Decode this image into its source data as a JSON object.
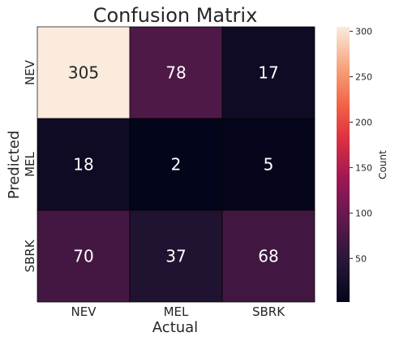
{
  "chart_data": {
    "type": "heatmap",
    "title": "Confusion Matrix",
    "xlabel": "Actual",
    "ylabel": "Predicted",
    "x_categories": [
      "NEV",
      "MEL",
      "SBRK"
    ],
    "y_categories": [
      "NEV",
      "MEL",
      "SBRK"
    ],
    "values": [
      [
        305,
        78,
        17
      ],
      [
        18,
        2,
        5
      ],
      [
        70,
        37,
        68
      ]
    ],
    "colorbar": {
      "label": "Count",
      "range": [
        2,
        305
      ],
      "ticks": [
        50,
        100,
        150,
        200,
        250,
        300
      ],
      "tick_labels": [
        "50",
        "100",
        "150",
        "200",
        "250",
        "300"
      ],
      "colormap": "rocket"
    },
    "grid": false,
    "cell_borders": true
  }
}
